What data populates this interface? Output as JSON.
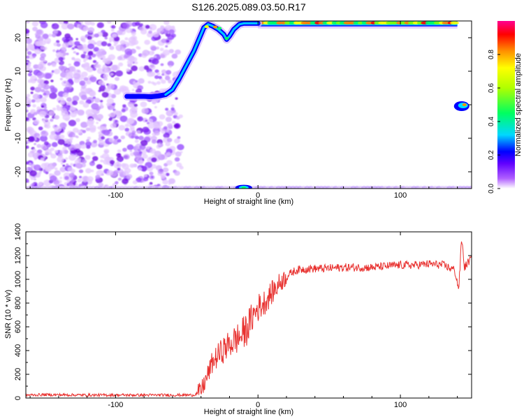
{
  "title": "S126.2025.089.03.50.R17",
  "chart_data": [
    {
      "type": "heatmap",
      "xlabel": "Height of straight line (km)",
      "ylabel": "Frequency (Hz)",
      "xlim": [
        -163,
        150
      ],
      "ylim": [
        -25,
        25
      ],
      "xticks": [
        -100,
        0,
        100
      ],
      "xtick_labels": [
        "-100",
        "0",
        "100"
      ],
      "yticks": [
        -20,
        -10,
        0,
        10,
        20
      ],
      "ytick_labels": [
        "-20",
        "-10",
        "0",
        "10",
        "20"
      ],
      "colorbar": {
        "label": "Normalized spectral amplitude",
        "range": [
          0,
          1
        ],
        "ticks": [
          0,
          0.2,
          0.4,
          0.6,
          0.8
        ],
        "tick_labels": [
          "0.0",
          "0.2",
          "0.4",
          "0.6",
          "0.8"
        ],
        "colors": [
          "#ffffff",
          "#8800ff",
          "#0000ff",
          "#00e0ff",
          "#00ff40",
          "#ffff00",
          "#ff8000",
          "#ff0000",
          "#ff0088"
        ]
      },
      "ridge": {
        "x": [
          -92,
          -85,
          -80,
          -75,
          -70,
          -65,
          -60,
          -55,
          -50,
          -45,
          -41,
          -38,
          -35,
          -32,
          -28,
          -24,
          -22,
          -20,
          -17,
          -13,
          -10,
          -5,
          0
        ],
        "y": [
          2.5,
          2.5,
          2.5,
          2.4,
          2.6,
          3,
          4.5,
          8,
          12,
          16,
          20,
          23,
          24,
          23.5,
          22.5,
          21,
          19.5,
          20.5,
          22.5,
          24,
          24.3,
          24.3,
          24.3
        ]
      },
      "noise_region_x": [
        -163,
        -52
      ],
      "top_band": {
        "x": [
          0,
          140
        ],
        "y": 24.3
      },
      "bottom_band": {
        "x": [
          -163,
          150
        ],
        "y": -24.5,
        "peak_x": -10
      },
      "spot": {
        "x": 143,
        "y": 0
      }
    },
    {
      "type": "line",
      "xlabel": "Height of straight line (km)",
      "ylabel": "SNR (10 * v/v)",
      "xlim": [
        -163,
        150
      ],
      "ylim": [
        0,
        1400
      ],
      "xticks": [
        -100,
        0,
        100
      ],
      "xtick_labels": [
        "-100",
        "0",
        "100"
      ],
      "yticks": [
        0,
        200,
        400,
        600,
        800,
        1000,
        1200,
        1400
      ],
      "ytick_labels": [
        "0",
        "200",
        "400",
        "600",
        "800",
        "1000",
        "1200",
        "1400"
      ],
      "series": [
        {
          "color": "#e8312f",
          "x": [
            -163,
            -150,
            -120,
            -100,
            -80,
            -60,
            -45,
            -40,
            -36,
            -32,
            -28,
            -24,
            -20,
            -16,
            -12,
            -8,
            -4,
            0,
            4,
            8,
            12,
            16,
            20,
            24,
            28,
            35,
            45,
            60,
            80,
            100,
            110,
            120,
            130,
            138,
            141,
            143,
            145,
            148,
            150
          ],
          "y": [
            25,
            28,
            25,
            25,
            25,
            25,
            25,
            60,
            170,
            300,
            360,
            410,
            450,
            490,
            520,
            580,
            680,
            760,
            800,
            860,
            920,
            980,
            1020,
            1060,
            1080,
            1090,
            1090,
            1100,
            1100,
            1120,
            1120,
            1130,
            1120,
            1080,
            920,
            1350,
            1100,
            1150,
            1180
          ]
        }
      ]
    }
  ]
}
